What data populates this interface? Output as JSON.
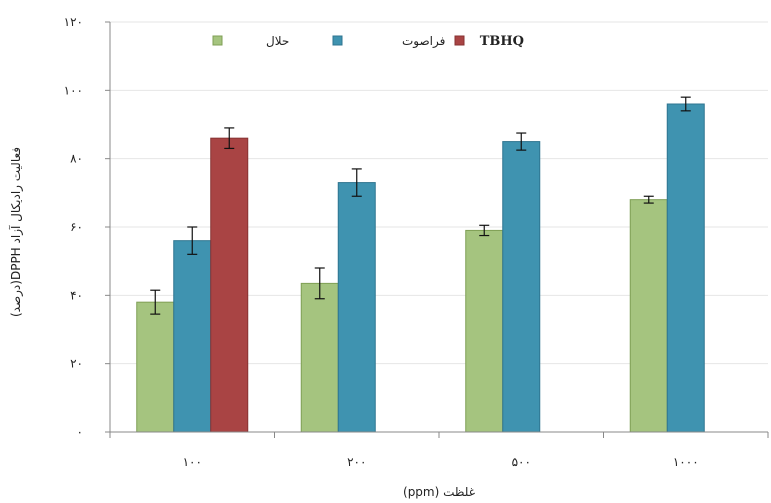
{
  "chart_data": {
    "type": "bar",
    "categories": [
      "۱۰۰",
      "۲۰۰",
      "۵۰۰",
      "۱۰۰۰"
    ],
    "series": [
      {
        "name": "حلال",
        "values": [
          38,
          43.5,
          59,
          68
        ],
        "errors": [
          3.5,
          4.5,
          1.5,
          1
        ],
        "color": "#a5c47f",
        "stroke": "#7f9f55"
      },
      {
        "name": "فراصوت",
        "values": [
          56,
          73,
          85,
          96
        ],
        "errors": [
          4,
          4,
          2.5,
          2
        ],
        "color": "#3f93b0",
        "stroke": "#2f7590"
      },
      {
        "name": "TBHQ",
        "values": [
          86,
          null,
          null,
          null
        ],
        "errors": [
          3,
          null,
          null,
          null
        ],
        "color": "#a94444",
        "stroke": "#873232"
      }
    ],
    "ylim": [
      0,
      120
    ],
    "yticks": [
      "۰",
      "۲۰",
      "۴۰",
      "۶۰",
      "۸۰",
      "۱۰۰",
      "۱۲۰"
    ],
    "xlabel": "غلظت (ppm)",
    "ylabel": "فعالیت رادیکال آزاد DPPH(درصد)",
    "legend_position": "top"
  }
}
